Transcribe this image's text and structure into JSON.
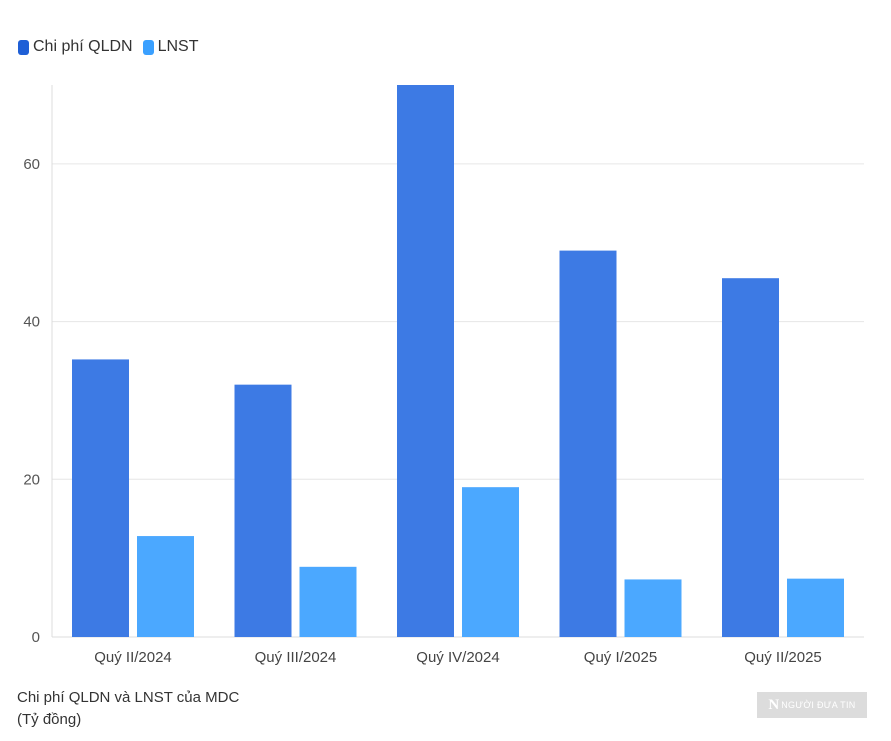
{
  "chart_data": {
    "type": "bar",
    "categories": [
      "Quý II/2024",
      "Quý III/2024",
      "Quý IV/2024",
      "Quý I/2025",
      "Quý II/2025"
    ],
    "series": [
      {
        "name": "Chi phí QLDN",
        "color": "#3d7ae4",
        "values": [
          35.2,
          32,
          70,
          49,
          45.5
        ]
      },
      {
        "name": "LNST",
        "color": "#4ba8ff",
        "values": [
          12.8,
          8.9,
          19,
          7.3,
          7.4
        ]
      }
    ],
    "ylim": [
      0,
      70
    ],
    "yticks": [
      0,
      20,
      40,
      60
    ],
    "grid": true,
    "legend": "top-left",
    "caption_line1": "Chi phí QLDN và LNST của MDC",
    "caption_line2": "(Tỷ đồng)"
  },
  "watermark": {
    "letter": "N",
    "text": "NGƯỜI ĐƯA TIN"
  }
}
